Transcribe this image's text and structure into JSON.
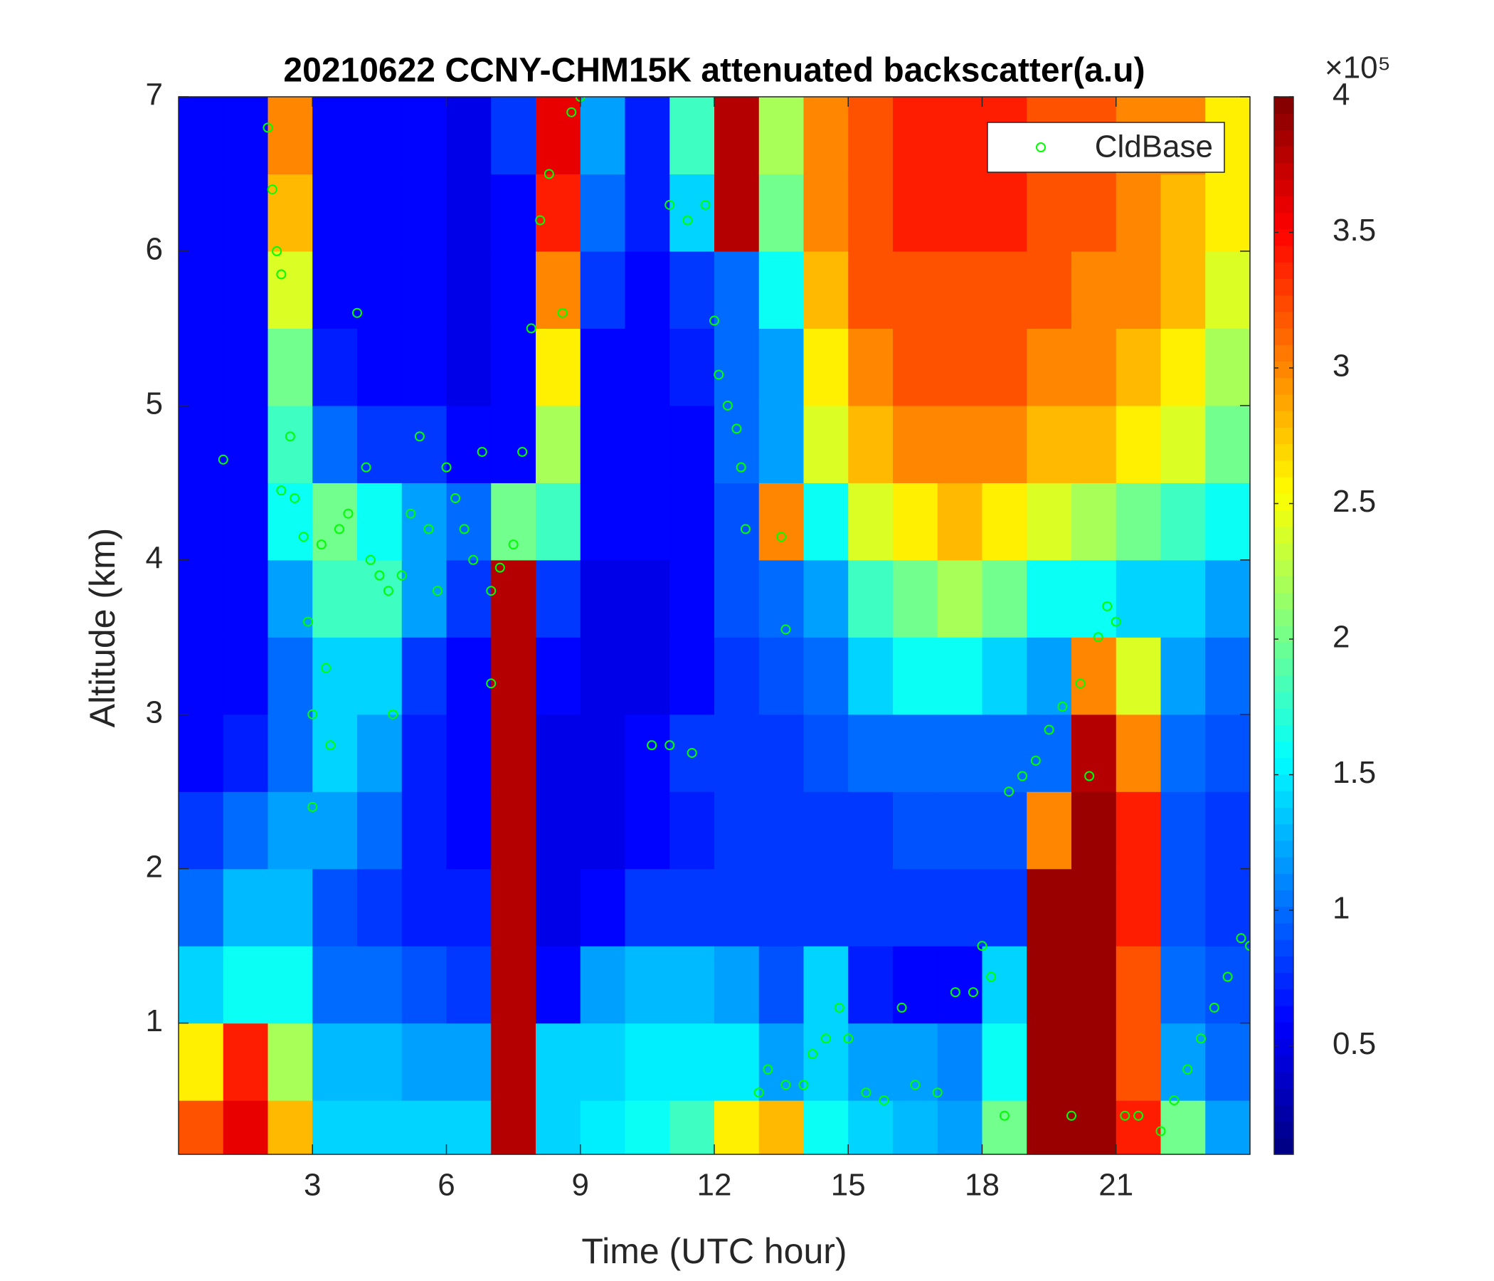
{
  "chart_data": {
    "type": "heatmap",
    "title": "20210622 CCNY-CHM15K attenuated backscatter(a.u)",
    "xlabel": "Time (UTC hour)",
    "ylabel": "Altitude (km)",
    "xlim": [
      0,
      24
    ],
    "xticks": [
      3,
      6,
      9,
      12,
      15,
      18,
      21
    ],
    "ylim": [
      0.15,
      7
    ],
    "yticks": [
      1,
      2,
      3,
      4,
      5,
      6,
      7
    ],
    "colormap": "jet",
    "x_bins": [
      0,
      1,
      2,
      3,
      4,
      5,
      6,
      7,
      8,
      9,
      10,
      11,
      12,
      13,
      14,
      15,
      16,
      17,
      18,
      19,
      20,
      21,
      22,
      23,
      24
    ],
    "y_bins": [
      0.15,
      0.5,
      1,
      1.5,
      2,
      2.5,
      3,
      3.5,
      4,
      4.5,
      5,
      5.5,
      6,
      6.5,
      7
    ],
    "values": [
      [
        3.2,
        2.6,
        1.4,
        1.0,
        0.8,
        0.6,
        0.6,
        0.6,
        0.6,
        0.6,
        0.6,
        0.6,
        0.6,
        0.6
      ],
      [
        3.6,
        3.4,
        1.6,
        1.3,
        1.0,
        0.7,
        0.6,
        0.6,
        0.6,
        0.6,
        0.6,
        0.6,
        0.6,
        0.6
      ],
      [
        2.8,
        2.2,
        1.6,
        1.3,
        1.2,
        1.0,
        1.0,
        1.2,
        1.6,
        1.8,
        2.0,
        2.4,
        2.8,
        3.0
      ],
      [
        1.4,
        1.3,
        1.0,
        0.9,
        1.2,
        1.4,
        1.4,
        1.8,
        2.0,
        1.0,
        0.7,
        0.6,
        0.6,
        0.6
      ],
      [
        1.4,
        1.3,
        1.0,
        0.8,
        1.0,
        1.2,
        1.4,
        1.8,
        1.6,
        0.8,
        0.6,
        0.6,
        0.6,
        0.6
      ],
      [
        1.4,
        1.2,
        0.9,
        0.7,
        0.7,
        0.7,
        0.8,
        1.2,
        1.2,
        0.8,
        0.6,
        0.6,
        0.6,
        0.6
      ],
      [
        1.4,
        1.2,
        0.8,
        0.7,
        0.6,
        0.6,
        0.6,
        0.8,
        1.0,
        0.6,
        0.5,
        0.5,
        0.5,
        0.5
      ],
      [
        3.8,
        3.8,
        3.8,
        3.8,
        3.8,
        3.8,
        3.8,
        3.8,
        2.0,
        0.6,
        0.6,
        0.6,
        0.6,
        0.8
      ],
      [
        1.4,
        1.4,
        0.6,
        0.5,
        0.5,
        0.5,
        0.6,
        0.8,
        1.8,
        2.2,
        2.6,
        3.0,
        3.4,
        3.6
      ],
      [
        1.5,
        1.4,
        1.2,
        0.6,
        0.5,
        0.5,
        0.5,
        0.5,
        0.6,
        0.6,
        0.6,
        0.8,
        1.0,
        1.2
      ],
      [
        1.6,
        1.5,
        1.3,
        0.8,
        0.6,
        0.6,
        0.5,
        0.5,
        0.6,
        0.6,
        0.6,
        0.6,
        0.7,
        0.7
      ],
      [
        1.8,
        1.5,
        1.3,
        0.8,
        0.7,
        0.8,
        0.6,
        0.6,
        0.6,
        0.6,
        0.7,
        0.8,
        1.4,
        1.8
      ],
      [
        2.6,
        1.5,
        1.2,
        0.8,
        0.8,
        0.8,
        0.8,
        0.9,
        0.9,
        1.0,
        1.0,
        1.0,
        3.8,
        3.8
      ],
      [
        2.8,
        1.2,
        0.9,
        0.8,
        0.8,
        0.8,
        0.9,
        1.0,
        3.0,
        1.2,
        1.2,
        1.6,
        2.0,
        2.2
      ],
      [
        1.6,
        1.4,
        1.4,
        0.8,
        0.8,
        0.9,
        1.0,
        1.2,
        1.6,
        2.4,
        2.6,
        2.8,
        3.0,
        3.0
      ],
      [
        1.4,
        1.2,
        0.7,
        0.8,
        0.8,
        1.0,
        1.4,
        1.8,
        2.4,
        2.8,
        3.0,
        3.2,
        3.2,
        3.2
      ],
      [
        1.3,
        1.2,
        0.6,
        0.8,
        0.9,
        1.0,
        1.6,
        2.0,
        2.6,
        3.0,
        3.2,
        3.2,
        3.4,
        3.4
      ],
      [
        1.2,
        1.1,
        0.6,
        0.8,
        0.9,
        1.0,
        1.6,
        2.2,
        2.8,
        3.0,
        3.2,
        3.2,
        3.4,
        3.4
      ],
      [
        2.0,
        1.6,
        1.4,
        0.8,
        0.9,
        1.0,
        1.4,
        2.0,
        2.6,
        3.0,
        3.2,
        3.2,
        3.4,
        3.4
      ],
      [
        3.9,
        3.9,
        3.9,
        3.9,
        3.0,
        1.0,
        1.2,
        1.6,
        2.4,
        2.8,
        3.0,
        3.2,
        3.2,
        3.2
      ],
      [
        3.9,
        3.9,
        3.9,
        3.9,
        3.9,
        3.8,
        3.0,
        1.6,
        2.2,
        2.8,
        3.0,
        3.0,
        3.2,
        3.2
      ],
      [
        3.4,
        3.2,
        3.2,
        3.4,
        3.4,
        3.0,
        2.4,
        1.4,
        2.0,
        2.6,
        2.8,
        3.0,
        3.0,
        3.0
      ],
      [
        2.0,
        1.2,
        1.0,
        0.9,
        0.9,
        1.0,
        1.2,
        1.4,
        1.8,
        2.4,
        2.6,
        2.8,
        2.8,
        3.0
      ],
      [
        1.2,
        1.0,
        0.9,
        0.8,
        0.8,
        0.9,
        1.0,
        1.2,
        1.6,
        2.0,
        2.2,
        2.4,
        2.6,
        2.6
      ]
    ],
    "clim": [
      0.1,
      4
    ],
    "cticks": [
      0.5,
      1,
      1.5,
      2,
      2.5,
      3,
      3.5,
      4
    ],
    "colorbar_multiplier": "×10⁵",
    "legend": "upper right",
    "overlay": {
      "type": "scatter",
      "name": "CldBase",
      "color": "#00ff00",
      "x": [
        1.0,
        2.0,
        2.1,
        2.2,
        2.3,
        2.3,
        2.5,
        2.6,
        2.8,
        2.9,
        3.0,
        3.0,
        3.2,
        3.3,
        3.4,
        3.6,
        3.8,
        4.0,
        4.2,
        4.3,
        4.5,
        4.7,
        4.8,
        5.0,
        5.2,
        5.4,
        5.6,
        5.8,
        6.0,
        6.2,
        6.4,
        6.6,
        6.8,
        7.0,
        7.0,
        7.2,
        7.5,
        7.7,
        7.9,
        8.1,
        8.3,
        8.6,
        8.8,
        9.0,
        10.6,
        11.0,
        11.5,
        11.0,
        11.4,
        11.8,
        12.0,
        12.1,
        12.3,
        12.5,
        12.6,
        12.7,
        13.0,
        13.2,
        13.5,
        13.6,
        13.6,
        14.0,
        14.2,
        14.5,
        14.8,
        15.0,
        15.4,
        15.8,
        16.2,
        16.5,
        17.0,
        17.4,
        17.8,
        18.0,
        18.2,
        18.5,
        18.6,
        18.9,
        19.2,
        19.5,
        19.8,
        20.0,
        20.2,
        20.4,
        20.6,
        20.8,
        21.0,
        21.2,
        21.5,
        22.0,
        22.3,
        22.6,
        22.9,
        23.2,
        23.5,
        23.8,
        24.0
      ],
      "y": [
        4.65,
        6.8,
        6.4,
        6.0,
        5.85,
        4.45,
        4.8,
        4.4,
        4.15,
        3.6,
        3.0,
        2.4,
        4.1,
        3.3,
        2.8,
        4.2,
        4.3,
        5.6,
        4.6,
        4.0,
        3.9,
        3.8,
        3.0,
        3.9,
        4.3,
        4.8,
        4.2,
        3.8,
        4.6,
        4.4,
        4.2,
        4.0,
        4.7,
        3.8,
        3.2,
        3.95,
        4.1,
        4.7,
        5.5,
        6.2,
        6.5,
        5.6,
        6.9,
        7.0,
        2.8,
        2.8,
        2.75,
        6.3,
        6.2,
        6.3,
        5.55,
        5.2,
        5.0,
        4.85,
        4.6,
        4.2,
        0.55,
        0.7,
        4.15,
        3.55,
        0.6,
        0.6,
        0.8,
        0.9,
        1.1,
        0.9,
        0.55,
        0.5,
        1.1,
        0.6,
        0.55,
        1.2,
        1.2,
        1.5,
        1.3,
        0.4,
        2.5,
        2.6,
        2.7,
        2.9,
        3.05,
        0.4,
        3.2,
        2.6,
        3.5,
        3.7,
        3.6,
        0.4,
        0.4,
        0.3,
        0.5,
        0.7,
        0.9,
        1.1,
        1.3,
        1.55,
        1.5
      ]
    }
  }
}
